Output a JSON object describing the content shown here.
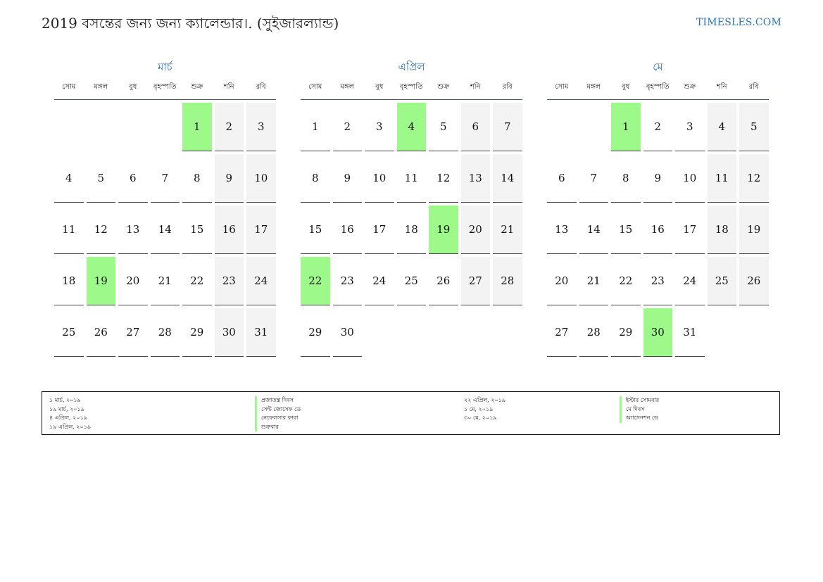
{
  "title": "2019 বসন্তের জন্য জন্য ক্যালেন্ডার।. (সুইজারল্যান্ড)",
  "site": "TIMESLES.COM",
  "weekdays": [
    "সোম",
    "মঙ্গল",
    "বুধ",
    "বৃহস্পতি",
    "শুক্র",
    "শনি",
    "রবি"
  ],
  "colors": {
    "holiday": "#9cf98a",
    "weekend": "#f3f3f3",
    "accent": "#2a73b0"
  },
  "months": [
    {
      "name": "মার্চ",
      "start_offset": 4,
      "days": 31,
      "holidays": [
        1,
        19
      ]
    },
    {
      "name": "এপ্রিল",
      "start_offset": 0,
      "days": 30,
      "holidays": [
        4,
        19,
        22
      ]
    },
    {
      "name": "মে",
      "start_offset": 2,
      "days": 31,
      "holidays": [
        1,
        30
      ]
    }
  ],
  "legend": {
    "col1_dates": [
      "১ মার্চ, ২০১৯",
      "১৯ মার্চ, ২০১৯",
      "৪ এপ্রিল, ২০১৯",
      "১৯ এপ্রিল, ২০১৯"
    ],
    "col1_names": [
      "প্রজাতন্ত্র দিবস",
      "সেন্ট জোসেফ ডে",
      "নেফেলসার ফারা",
      "শুক্রবার"
    ],
    "col2_dates": [
      "২২ এপ্রিল, ২০১৯",
      "১ মে, ২০১৯",
      "৩০ মে, ২০১৯"
    ],
    "col2_names": [
      "ইস্টার সোমবার",
      "মে দিবস",
      "অ্যাসেনশন ডে"
    ]
  }
}
